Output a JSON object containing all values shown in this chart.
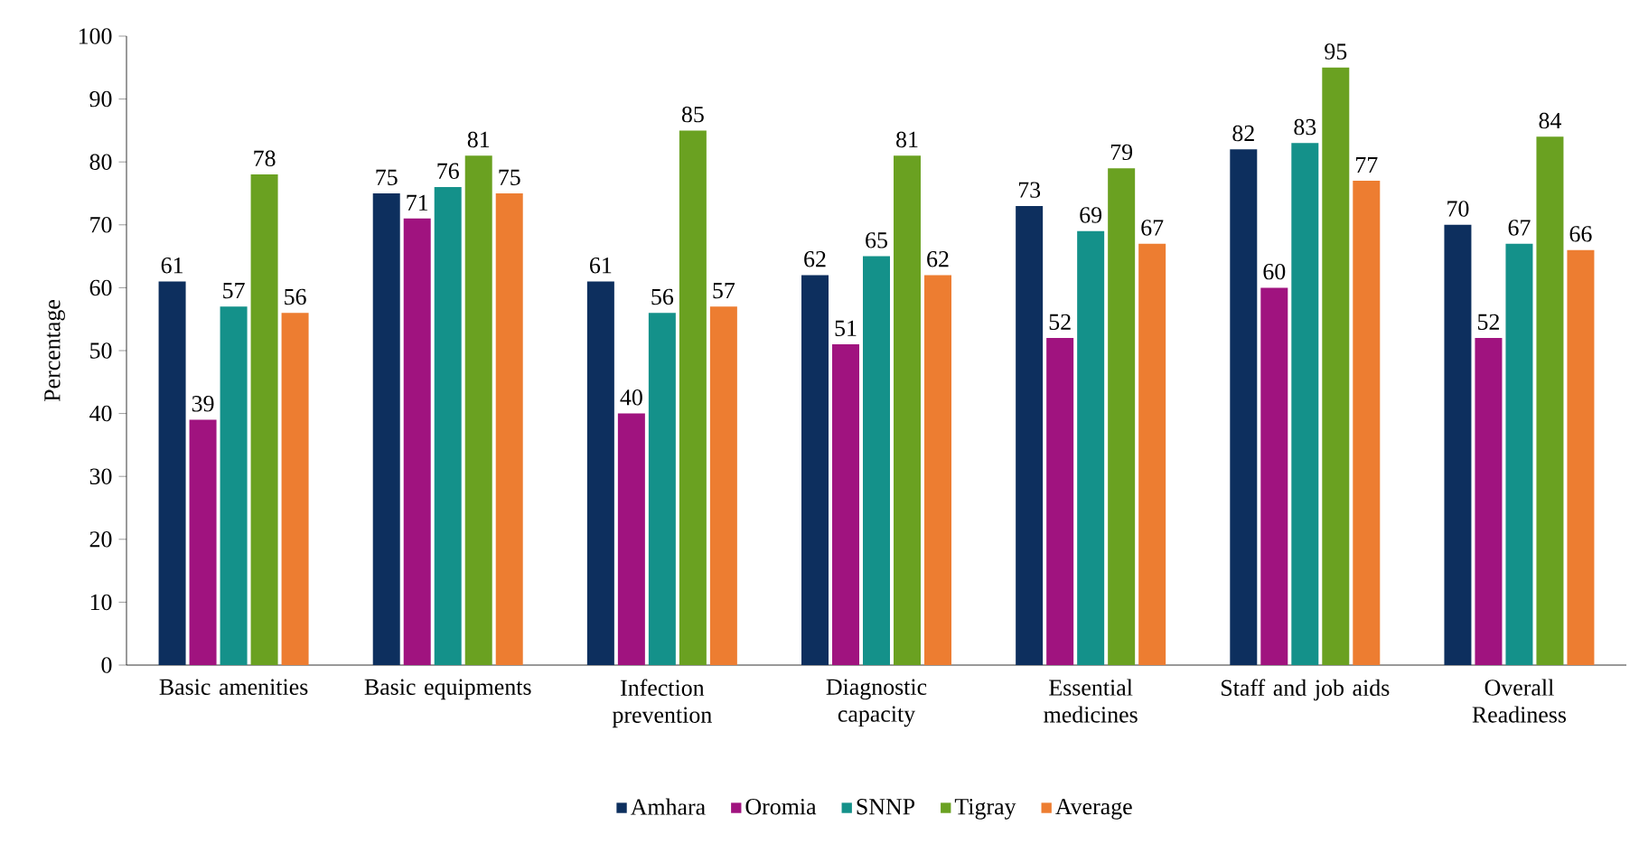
{
  "chart_data": {
    "type": "bar",
    "ylabel": "Percentage",
    "categories": [
      "Basic amenities",
      "Basic equipments",
      "Infection prevention",
      "Diagnostic capacity",
      "Essential medicines",
      "Staff and job aids",
      "Overall Readiness"
    ],
    "series": [
      {
        "name": "Amhara",
        "color": "#0d2f5e",
        "values": [
          61,
          75,
          61,
          62,
          73,
          82,
          70
        ]
      },
      {
        "name": "Oromia",
        "color": "#a0137f",
        "values": [
          39,
          71,
          40,
          51,
          52,
          60,
          52
        ]
      },
      {
        "name": "SNNP",
        "color": "#14918a",
        "values": [
          57,
          76,
          56,
          65,
          69,
          83,
          67
        ]
      },
      {
        "name": "Tigray",
        "color": "#6aa121",
        "values": [
          78,
          81,
          85,
          81,
          79,
          95,
          84
        ]
      },
      {
        "name": "Average",
        "color": "#ed7d31",
        "values": [
          56,
          75,
          57,
          62,
          67,
          77,
          66
        ]
      }
    ],
    "ylim": [
      0,
      100
    ],
    "yticks": [
      0,
      10,
      20,
      30,
      40,
      50,
      60,
      70,
      80,
      90,
      100
    ],
    "data_labels": true,
    "legend": "bottom"
  }
}
